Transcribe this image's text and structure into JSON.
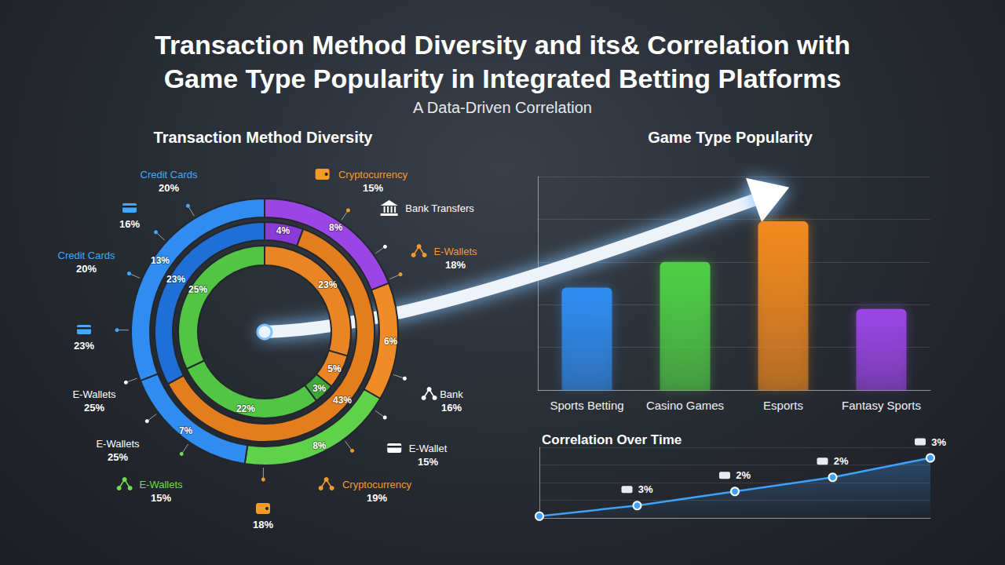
{
  "title": "Transaction Method Diversity and its& Correlation with Game Type Popularity in Integrated Betting Platforms",
  "subtitle": "A Data-Driven Correlation",
  "chart_data": [
    {
      "type": "pie",
      "title": "Transaction Method Diversity",
      "data_labels": true,
      "rings": [
        {
          "values": [
            8,
            6,
            8,
            7,
            13
          ],
          "value_labels": [
            "8%",
            "6%",
            "8%",
            "7%",
            "13%"
          ],
          "colors": [
            "#9b45e6",
            "#f08c26",
            "#5fd14a",
            "#2f8df2",
            "#2f8df2"
          ]
        },
        {
          "values": [
            4,
            43,
            23
          ],
          "value_labels": [
            "4%",
            "43%",
            "23%"
          ],
          "colors": [
            "#8a3ad6",
            "#e47d1e",
            "#1f6fd6"
          ]
        },
        {
          "values": [
            23,
            5,
            3,
            22,
            25
          ],
          "value_labels": [
            "23%",
            "5%",
            "3%",
            "22%",
            "25%"
          ],
          "colors": [
            "#e98524",
            "#e98524",
            "#3fa83a",
            "#52c544",
            "#52c544"
          ]
        }
      ],
      "annotations": [
        {
          "label": "Credit Cards",
          "text": "20%",
          "color": "#3fa9ff"
        },
        {
          "text": "16%",
          "color": "#3fa9ff"
        },
        {
          "label": "Credit Cards",
          "text": "20%",
          "color": "#3fa9ff"
        },
        {
          "text": "23%",
          "color": "#3fa9ff"
        },
        {
          "label": "E-Wallets",
          "text": "25%",
          "color": "#ffffff"
        },
        {
          "label": "E-Wallets",
          "text": "25%",
          "color": "#ffffff"
        },
        {
          "label": "E-Wallets",
          "text": "15%",
          "color": "#6fdc4f"
        },
        {
          "text": "18%",
          "color": "#f39a2b"
        },
        {
          "label": "Cryptocurrency",
          "text": "19%",
          "color": "#f39a2b"
        },
        {
          "label": "E-Wallet",
          "text": "15%",
          "color": "#ffffff"
        },
        {
          "label": "Bank",
          "text": "16%",
          "color": "#ffffff"
        },
        {
          "label": "E-Wallets",
          "text": "18%",
          "color": "#f39a2b"
        },
        {
          "label": "Bank Transfers",
          "color": "#ffffff"
        },
        {
          "label": "Cryptocurrency",
          "text": "15%",
          "color": "#f39a2b"
        }
      ]
    },
    {
      "type": "bar",
      "title": "Game Type Popularity",
      "categories": [
        "Sports Betting",
        "Casino Games",
        "Esports",
        "Fantasy Sports"
      ],
      "values": [
        48,
        60,
        79,
        38
      ],
      "colors": [
        "#2f8df2",
        "#4fcf46",
        "#f38a1f",
        "#9b45e6"
      ],
      "ylim": [
        0,
        100
      ],
      "yticks": [
        0,
        20,
        40,
        60,
        80,
        100
      ],
      "grid": true,
      "tick_labels": "x"
    },
    {
      "type": "line",
      "title": "Correlation Over Time",
      "categories": [
        null,
        null,
        null,
        null,
        null
      ],
      "values": [
        0.1,
        0.7,
        1.5,
        2.3,
        3.4
      ],
      "annotations": [
        null,
        "3%",
        "2%",
        "2%",
        "3%"
      ],
      "color": "#3ea0ff",
      "marker": "circle",
      "ylim": [
        0,
        4
      ],
      "yticks": [
        0,
        1,
        2,
        3,
        4
      ],
      "grid": true,
      "tick_labels": false
    }
  ]
}
